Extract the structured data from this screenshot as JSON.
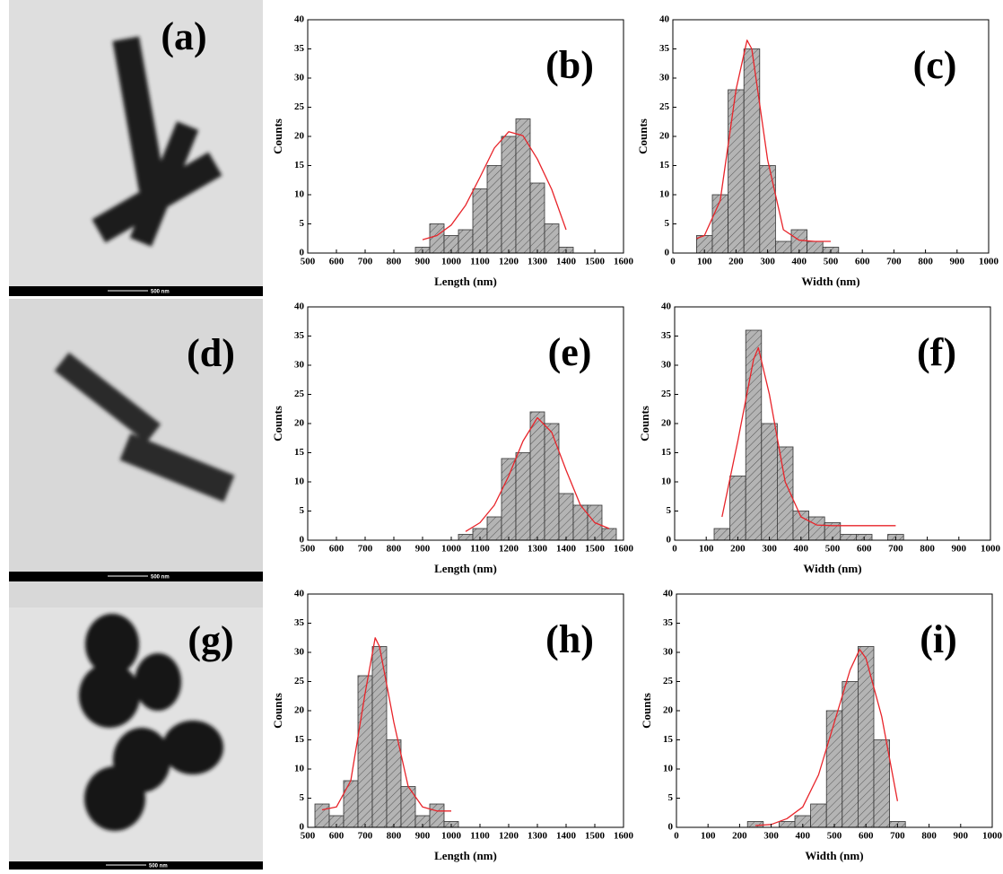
{
  "images": [
    {
      "label": "(a)",
      "scale": "500 nm"
    },
    {
      "label": "(d)",
      "scale": "500 nm"
    },
    {
      "label": "(g)",
      "scale": "500 nm"
    }
  ],
  "chart_data": [
    {
      "type": "histogram",
      "label": "(b)",
      "xlabel": "Length (nm)",
      "ylabel": "Counts",
      "color": "#b4b4b4",
      "bins": [
        875,
        925,
        975,
        1025,
        1075,
        1125,
        1175,
        1225,
        1275,
        1325,
        1375,
        1425
      ],
      "values": [
        1,
        5,
        3,
        4,
        11,
        15,
        20,
        23,
        12,
        5,
        1
      ],
      "fit": {
        "color": "#e8242a",
        "x": [
          900,
          950,
          1000,
          1050,
          1100,
          1150,
          1200,
          1250,
          1300,
          1350,
          1400
        ],
        "values": [
          2.3,
          3,
          4.8,
          8.2,
          13,
          18,
          20.8,
          20.1,
          16.1,
          10.9,
          4
        ]
      },
      "xlim": [
        500,
        1600
      ],
      "xticks": [
        500,
        600,
        700,
        800,
        900,
        1000,
        1100,
        1200,
        1300,
        1400,
        1500,
        1600
      ],
      "ylim": [
        0,
        40
      ],
      "yticks": [
        0,
        5,
        10,
        15,
        20,
        25,
        30,
        35,
        40
      ]
    },
    {
      "type": "histogram",
      "label": "(c)",
      "xlabel": "Width (nm)",
      "ylabel": "Counts",
      "color": "#b4b4b4",
      "bins": [
        75,
        125,
        175,
        225,
        275,
        325,
        375,
        425,
        475,
        525
      ],
      "values": [
        3,
        10,
        28,
        35,
        15,
        2,
        4,
        2,
        1
      ],
      "fit": {
        "color": "#e8242a",
        "x": [
          75,
          100,
          150,
          200,
          235,
          250,
          300,
          350,
          400,
          450,
          500
        ],
        "values": [
          2.5,
          3,
          9,
          28,
          36.5,
          35,
          16,
          4,
          2.2,
          2,
          2
        ]
      },
      "xlim": [
        0,
        1000
      ],
      "xticks": [
        0,
        100,
        200,
        300,
        400,
        500,
        600,
        700,
        800,
        900,
        1000
      ],
      "ylim": [
        0,
        40
      ],
      "yticks": [
        0,
        5,
        10,
        15,
        20,
        25,
        30,
        35,
        40
      ]
    },
    {
      "type": "histogram",
      "label": "(e)",
      "xlabel": "Length (nm)",
      "ylabel": "Counts",
      "color": "#b4b4b4",
      "bins": [
        1025,
        1075,
        1125,
        1175,
        1225,
        1275,
        1325,
        1375,
        1425,
        1475,
        1525,
        1575
      ],
      "values": [
        1,
        2,
        4,
        14,
        15,
        22,
        20,
        8,
        6,
        6,
        2
      ],
      "fit": {
        "color": "#e8242a",
        "x": [
          1050,
          1100,
          1150,
          1200,
          1250,
          1300,
          1350,
          1400,
          1450,
          1500,
          1550
        ],
        "values": [
          1.5,
          3,
          6,
          11,
          17,
          21,
          18.5,
          12,
          6,
          3,
          2
        ]
      },
      "xlim": [
        500,
        1600
      ],
      "xticks": [
        500,
        600,
        700,
        800,
        900,
        1000,
        1100,
        1200,
        1300,
        1400,
        1500,
        1600
      ],
      "ylim": [
        0,
        40
      ],
      "yticks": [
        0,
        5,
        10,
        15,
        20,
        25,
        30,
        35,
        40
      ]
    },
    {
      "type": "histogram",
      "label": "(f)",
      "xlabel": "Width (nm)",
      "ylabel": "Counts",
      "color": "#b4b4b4",
      "bins": [
        125,
        175,
        225,
        275,
        325,
        375,
        425,
        475,
        525,
        575,
        625,
        675,
        725
      ],
      "values": [
        2,
        11,
        36,
        20,
        16,
        5,
        4,
        3,
        1,
        1,
        0,
        1
      ],
      "fit": {
        "color": "#e8242a",
        "x": [
          150,
          200,
          250,
          265,
          300,
          350,
          400,
          450,
          500,
          700
        ],
        "values": [
          4,
          17,
          31,
          33,
          25,
          10,
          4,
          2.6,
          2.5,
          2.5
        ]
      },
      "xlim": [
        0,
        1000
      ],
      "xticks": [
        0,
        100,
        200,
        300,
        400,
        500,
        600,
        700,
        800,
        900,
        1000
      ],
      "ylim": [
        0,
        40
      ],
      "yticks": [
        0,
        5,
        10,
        15,
        20,
        25,
        30,
        35,
        40
      ]
    },
    {
      "type": "histogram",
      "label": "(h)",
      "xlabel": "Length (nm)",
      "ylabel": "Counts",
      "color": "#b4b4b4",
      "bins": [
        525,
        575,
        625,
        675,
        725,
        775,
        825,
        875,
        925,
        975,
        1025
      ],
      "values": [
        4,
        2,
        8,
        26,
        31,
        15,
        7,
        2,
        4,
        1
      ],
      "fit": {
        "color": "#e8242a",
        "x": [
          550,
          600,
          650,
          700,
          735,
          750,
          800,
          850,
          900,
          950,
          1000
        ],
        "values": [
          3,
          3.5,
          8,
          23,
          32.5,
          31,
          18,
          7,
          3.5,
          2.8,
          2.8
        ]
      },
      "xlim": [
        500,
        1600
      ],
      "xticks": [
        500,
        600,
        700,
        800,
        900,
        1000,
        1100,
        1200,
        1300,
        1400,
        1500,
        1600
      ],
      "ylim": [
        0,
        40
      ],
      "yticks": [
        0,
        5,
        10,
        15,
        20,
        25,
        30,
        35,
        40
      ]
    },
    {
      "type": "histogram",
      "label": "(i)",
      "xlabel": "Width (nm)",
      "ylabel": "Counts",
      "color": "#b4b4b4",
      "bins": [
        225,
        275,
        325,
        375,
        425,
        475,
        525,
        575,
        625,
        675,
        725
      ],
      "values": [
        1,
        0,
        1,
        2,
        4,
        20,
        25,
        31,
        15,
        1
      ],
      "fit": {
        "color": "#e8242a",
        "x": [
          250,
          300,
          350,
          400,
          450,
          500,
          550,
          580,
          600,
          650,
          700
        ],
        "values": [
          0.3,
          0.5,
          1.5,
          3.5,
          9,
          18,
          27,
          30.5,
          29,
          19,
          4.5
        ]
      },
      "xlim": [
        0,
        1000
      ],
      "xticks": [
        0,
        100,
        200,
        300,
        400,
        500,
        600,
        700,
        800,
        900,
        1000
      ],
      "ylim": [
        0,
        40
      ],
      "yticks": [
        0,
        5,
        10,
        15,
        20,
        25,
        30,
        35,
        40
      ]
    }
  ]
}
